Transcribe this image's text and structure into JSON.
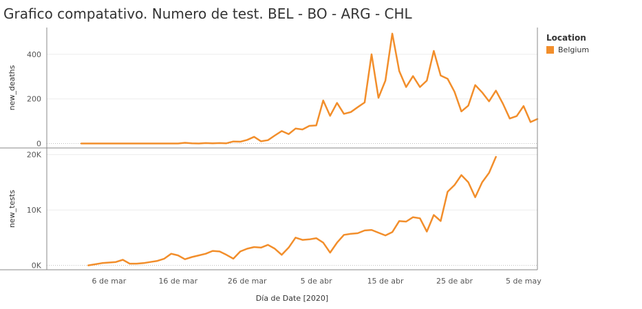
{
  "title": "Grafico compatativo. Numero de test. BEL - BO - ARG - CHL",
  "colors": {
    "series": "#f28e2b",
    "grid": "#ececec",
    "axis": "#888888",
    "zero": "#bdbdbd"
  },
  "legend": {
    "title": "Location",
    "items": [
      {
        "label": "Belgium",
        "color": "#f28e2b"
      }
    ]
  },
  "chart_data": {
    "type": "line",
    "x_label": "Día de Date [2020]",
    "x_ticks": [
      {
        "label": "6 de mar",
        "date": "2020-03-06"
      },
      {
        "label": "16 de mar",
        "date": "2020-03-16"
      },
      {
        "label": "26 de mar",
        "date": "2020-03-26"
      },
      {
        "label": "5 de abr",
        "date": "2020-04-05"
      },
      {
        "label": "15 de abr",
        "date": "2020-04-15"
      },
      {
        "label": "25 de abr",
        "date": "2020-04-25"
      },
      {
        "label": "5 de may",
        "date": "2020-05-05"
      }
    ],
    "x_range": [
      "2020-02-26",
      "2020-05-07"
    ],
    "panels": [
      {
        "name": "new_deaths",
        "y_label": "new_deaths",
        "y_range": [
          -20,
          520
        ],
        "y_ticks": [
          {
            "value": 0,
            "label": "0"
          },
          {
            "value": 200,
            "label": "200"
          },
          {
            "value": 400,
            "label": "400"
          }
        ],
        "series": [
          {
            "name": "Belgium",
            "start": "2020-03-02",
            "values": [
              0,
              0,
              0,
              0,
              0,
              0,
              0,
              0,
              0,
              0,
              0,
              0,
              0,
              0,
              0,
              3,
              1,
              0,
              2,
              1,
              2,
              1,
              9,
              8,
              16,
              30,
              10,
              15,
              36,
              56,
              42,
              67,
              63,
              79,
              81,
              193,
              124,
              182,
              133,
              141,
              163,
              184,
              400,
              205,
              282,
              493,
              325,
              253,
              302,
              253,
              282,
              415,
              305,
              290,
              232,
              144,
              170,
              262,
              229,
              189,
              237,
              179,
              112,
              123,
              168,
              96,
              110
            ]
          }
        ]
      },
      {
        "name": "new_tests",
        "y_label": "new_tests",
        "y_range": [
          -800,
          21200
        ],
        "y_ticks": [
          {
            "value": 0,
            "label": "0K"
          },
          {
            "value": 10000,
            "label": "10K"
          },
          {
            "value": 20000,
            "label": "20K"
          }
        ],
        "series": [
          {
            "name": "Belgium",
            "start": "2020-03-03",
            "values": [
              0,
              200,
              400,
              500,
              600,
              1000,
              300,
              300,
              400,
              600,
              800,
              1200,
              2100,
              1800,
              1100,
              1500,
              1800,
              2100,
              2600,
              2500,
              1900,
              1200,
              2500,
              3000,
              3300,
              3200,
              3700,
              3000,
              1900,
              3200,
              5000,
              4600,
              4700,
              4900,
              4100,
              2300,
              4100,
              5500,
              5700,
              5800,
              6300,
              6400,
              5900,
              5400,
              6000,
              8000,
              7900,
              8700,
              8500,
              6100,
              9100,
              8000,
              13300,
              14500,
              16300,
              15000,
              12300,
              15000,
              16700,
              19600
            ]
          }
        ]
      }
    ]
  }
}
